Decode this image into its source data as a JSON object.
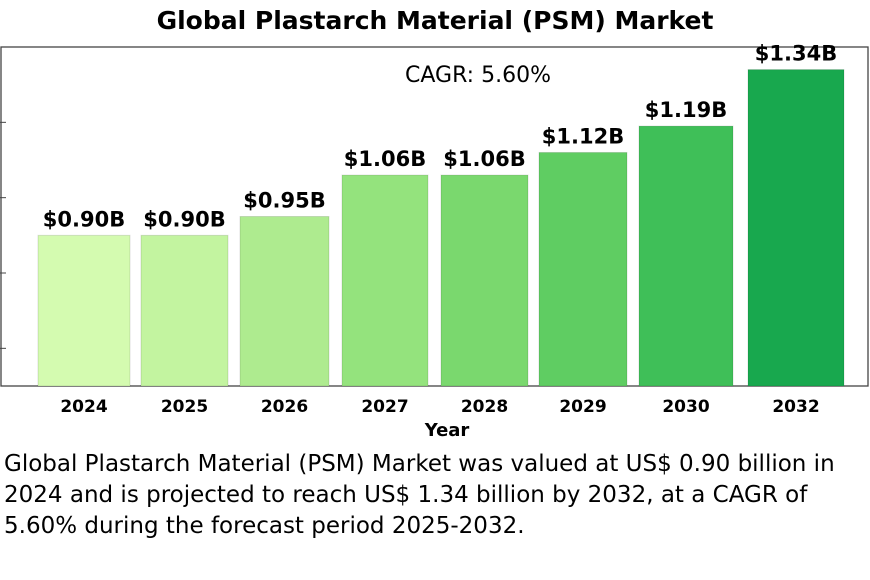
{
  "chart_data": {
    "type": "bar",
    "title": "Global Plastarch Material (PSM) Market",
    "annotation": "CAGR: 5.60%",
    "xlabel": "Year",
    "ylabel": "",
    "categories": [
      "2024",
      "2025",
      "2026",
      "2027",
      "2028",
      "2029",
      "2030",
      "2032"
    ],
    "values": [
      0.9,
      0.9,
      0.95,
      1.06,
      1.06,
      1.12,
      1.19,
      1.34
    ],
    "data_labels": [
      "$0.90B",
      "$0.90B",
      "$0.95B",
      "$1.06B",
      "$1.06B",
      "$1.12B",
      "$1.19B",
      "$1.34B"
    ],
    "ylim": [
      0.5,
      1.4
    ],
    "grid": false,
    "colors": [
      "#d4fbb0",
      "#c3f4a0",
      "#aeeb8f",
      "#94e37d",
      "#7ad86e",
      "#5fcd62",
      "#3fbf58",
      "#18a84e"
    ]
  },
  "description": "Global Plastarch Material (PSM) Market was valued at US$ 0.90 billion in 2024 and is projected to reach US$ 1.34 billion by 2032, at a CAGR of 5.60% during the forecast period 2025-2032."
}
